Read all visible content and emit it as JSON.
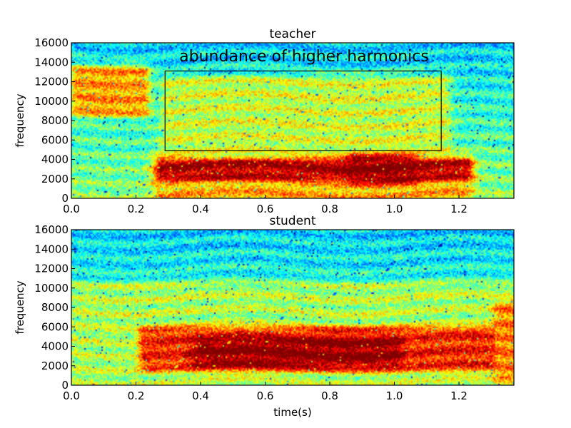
{
  "chart_data": [
    {
      "type": "heatmap",
      "title": "teacher",
      "xlabel": "",
      "ylabel": "frequency",
      "xlim": [
        0.0,
        1.37
      ],
      "ylim": [
        0,
        16000
      ],
      "xticks": [
        "0.0",
        "0.2",
        "0.4",
        "0.6",
        "0.8",
        "1.0",
        "1.2"
      ],
      "xtick_values": [
        0.0,
        0.2,
        0.4,
        0.6,
        0.8,
        1.0,
        1.2
      ],
      "yticks": [
        "0",
        "2000",
        "4000",
        "6000",
        "8000",
        "10000",
        "12000",
        "14000",
        "16000"
      ],
      "ytick_values": [
        0,
        2000,
        4000,
        6000,
        8000,
        10000,
        12000,
        14000,
        16000
      ],
      "colormap": "jet",
      "annotation": {
        "text": "abundance of higher harmonics",
        "box_x": [
          0.29,
          1.145
        ],
        "box_y": [
          4900,
          13100
        ]
      },
      "energy_regions": [
        {
          "t": [
            0.02,
            0.22
          ],
          "f": [
            9000,
            13000
          ],
          "level": 0.72
        },
        {
          "t": [
            0.28,
            1.22
          ],
          "f": [
            2300,
            3600
          ],
          "level": 0.95
        },
        {
          "t": [
            0.28,
            1.22
          ],
          "f": [
            200,
            2300
          ],
          "level": 0.7
        },
        {
          "t": [
            0.3,
            1.15
          ],
          "f": [
            3600,
            12000
          ],
          "level": 0.58
        },
        {
          "t": [
            0.88,
            1.05
          ],
          "f": [
            2200,
            3800
          ],
          "level": 1.0
        }
      ]
    },
    {
      "type": "heatmap",
      "title": "student",
      "xlabel": "time(s)",
      "ylabel": "frequency",
      "xlim": [
        0.0,
        1.37
      ],
      "ylim": [
        0,
        16000
      ],
      "xticks": [
        "0.0",
        "0.2",
        "0.4",
        "0.6",
        "0.8",
        "1.0",
        "1.2"
      ],
      "xtick_values": [
        0.0,
        0.2,
        0.4,
        0.6,
        0.8,
        1.0,
        1.2
      ],
      "yticks": [
        "0",
        "2000",
        "4000",
        "6000",
        "8000",
        "10000",
        "12000",
        "14000",
        "16000"
      ],
      "ytick_values": [
        0,
        2000,
        4000,
        6000,
        8000,
        10000,
        12000,
        14000,
        16000
      ],
      "colormap": "jet",
      "energy_regions": [
        {
          "t": [
            0.23,
            1.3
          ],
          "f": [
            2000,
            5500
          ],
          "level": 0.85
        },
        {
          "t": [
            0.4,
            1.0
          ],
          "f": [
            2500,
            4300
          ],
          "level": 1.0
        },
        {
          "t": [
            0.0,
            1.37
          ],
          "f": [
            0,
            10000
          ],
          "level": 0.55
        },
        {
          "t": [
            1.33,
            1.37
          ],
          "f": [
            1000,
            8000
          ],
          "level": 0.75
        }
      ]
    }
  ],
  "colors": {
    "background": "#ffffff",
    "axis": "#000000"
  }
}
